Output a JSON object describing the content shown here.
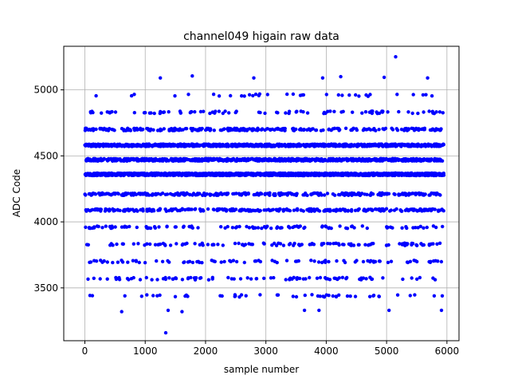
{
  "chart_data": {
    "type": "scatter",
    "title": "channel049 higain raw data",
    "xlabel": "sample number",
    "ylabel": "ADC Code",
    "xlim": [
      -350,
      6200
    ],
    "ylim": [
      3100,
      5330
    ],
    "xticks": [
      0,
      1000,
      2000,
      3000,
      4000,
      5000,
      6000
    ],
    "yticks": [
      3500,
      4000,
      4500,
      5000
    ],
    "grid": true,
    "marker_color": "#0000ff",
    "x_range": [
      0,
      5950
    ],
    "adc_levels": [
      {
        "y": 3440,
        "count": 50
      },
      {
        "y": 3570,
        "count": 90
      },
      {
        "y": 3700,
        "count": 90
      },
      {
        "y": 3830,
        "count": 120
      },
      {
        "y": 3960,
        "count": 110
      },
      {
        "y": 4090,
        "count": 300
      },
      {
        "y": 4210,
        "count": 300
      },
      {
        "y": 4360,
        "count": 1400
      },
      {
        "y": 4470,
        "count": 800
      },
      {
        "y": 4580,
        "count": 900
      },
      {
        "y": 4700,
        "count": 260
      },
      {
        "y": 4830,
        "count": 90
      },
      {
        "y": 4960,
        "count": 35
      }
    ],
    "outliers": [
      {
        "x": 1340,
        "y": 3160
      },
      {
        "x": 5150,
        "y": 5250
      },
      {
        "x": 1780,
        "y": 5105
      },
      {
        "x": 1250,
        "y": 5090
      },
      {
        "x": 2800,
        "y": 5090
      },
      {
        "x": 4960,
        "y": 5095
      },
      {
        "x": 5680,
        "y": 5090
      },
      {
        "x": 4240,
        "y": 5100
      },
      {
        "x": 3940,
        "y": 5090
      },
      {
        "x": 610,
        "y": 3320
      },
      {
        "x": 1610,
        "y": 3320
      },
      {
        "x": 3640,
        "y": 3330
      },
      {
        "x": 3880,
        "y": 3330
      },
      {
        "x": 5040,
        "y": 3330
      },
      {
        "x": 5910,
        "y": 3330
      },
      {
        "x": 1380,
        "y": 3330
      }
    ]
  }
}
